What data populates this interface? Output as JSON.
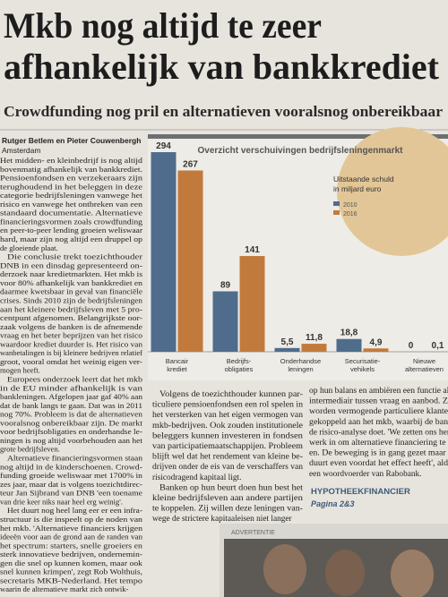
{
  "article": {
    "headline": [
      "Mkb nog altijd te zeer",
      "afhankelijk van bankkrediet"
    ],
    "subheadline": "Crowdfunding nog pril en alternatieven vooralsnog onbereikbaar",
    "byline": [
      "Rutger Betlem en Pieter Couwenbergh",
      "Amsterdam"
    ],
    "columns": [
      {
        "paragraphs": [
          [
            "Het midden- en kleinbedrijf is nog altijd",
            "bovenmatig afhankelijk van bankkrediet.",
            "Pensioenfondsen en verzekeraars zijn",
            "terughoudend in het beleggen in deze",
            "categorie bedrijfsleningen vanwege het",
            "risico en vanwege het ontbreken van een",
            "standaard documentatie. Alternatieve",
            "financieringsvormen zoals crowdfunding",
            "en peer-to-peer lending groeien weliswaar",
            "hard, maar zijn nog altijd een druppel op",
            "de gloeiende plaat."
          ],
          [
            "Die conclusie trekt toezichthouder",
            "DNB in een dinsdag gepresenteerd on-",
            "derzoek naar kredietmarkten. Het mkb is",
            "voor 80% afhankelijk van bankkrediet en",
            "daarmee kwetsbaar in geval van financiële",
            "crises. Sinds 2010 zijn de bedrijfsleningen",
            "aan het kleinere bedrijfsleven met 5 pro-",
            "centpunt afgenomen. Belangrijkste oor-",
            "zaak volgens de banken is de afnemende",
            "vraag en het beter beprijzen van het risico",
            "waardoor krediet duurder is. Het risico van",
            "wanbetalingen is bij kleinere bedrijven relatief",
            "groot, vooral omdat het weinig eigen ver-",
            "mogen heeft."
          ],
          [
            "Europees onderzoek leert dat het mkb",
            "in de EU minder afhankelijk is van",
            "bankleningen. Afgelopen jaar gaf 40% aan",
            "dat de bank langs te gaan. Dat was in 2011",
            "nog 70%. Probleem is dat de alternatieven",
            "vooralsnog onbereikbaar zijn. De markt",
            "voor bedrijfsobligaties en onderhandse le-",
            "ningen is nog altijd voorbehouden aan het",
            "grote bedrijfsleven."
          ],
          [
            "Alternatieve financieringsvormen staan",
            "nog altijd in de kinderschoenen. Crowd-",
            "funding groeide weliswaar met 1700% in",
            "zes jaar, maar dat is volgens toezichtdirec-",
            "teur Jan Sijbrand van DNB 'een toename",
            "van drie keer niks naar heel erg weinig'."
          ],
          [
            "Het duurt nog heel lang eer er een infra-",
            "structuur is die inspeelt op de noden van",
            "het mkb. 'Alternatieve financiers krijgen",
            "ideeën voor aan de grond aan de randen van",
            "het spectrum: starters, snelle groeiers en",
            "sterk innovatieve bedrijven, ondernemin-",
            "gen die snel op kunnen komen, maar ook",
            "snel kunnen krimpen', zegt Rob Wolthuis,",
            "secretaris MKB-Nederland. Het tempo",
            "waarin de alternatieve markt zich ontwik-"
          ]
        ]
      },
      {
        "paragraphs": [
          [
            "Volgens de toezichthouder kunnen par-",
            "ticuliere pensioenfondsen een rol spelen in",
            "het versterken van het eigen vermogen van",
            "mkb-bedrijven. Ook zouden institutionele",
            "beleggers kunnen investeren in fondsen",
            "van participatiemaatschappijen. Probleem",
            "blijft wel dat het rendement van kleine be-",
            "drijven onder de eis van de verschaffers van",
            "risicodragend kapitaal ligt."
          ],
          [
            "Banken op hun beurt doen hun best het",
            "kleine bedrijfsleven aan andere partijen",
            "te koppelen. Zij willen deze leningen van-",
            "wege de strictere kapitaaleisen niet langer"
          ]
        ]
      },
      {
        "paragraphs": [
          [
            "op hun balans en ambiëren een functie als",
            "intermediair tussen vraag en aanbod. Zo",
            "worden vermogende particuliere klanten",
            "gekoppeld aan het mkb, waarbij de bank",
            "de risico-analyse doet. 'We zetten ons her-",
            "werk in om alternatieve financiering te v",
            "en. De beweging is in gang gezet maar h",
            "duurt even voordat het effect heeft', aldu",
            "een woordvoerder van Rabobank."
          ]
        ]
      }
    ]
  },
  "sidebar": {
    "title": "HYPOTHEEKFINANCIER",
    "subtitle": "Pagina 2&3"
  },
  "advertisement": {
    "label": "ADVERTENTIE"
  },
  "chart_data": {
    "type": "bar",
    "title": "Overzicht verschuivingen bedrijfsleningenmarkt",
    "legend_title": [
      "Uitstaande schuld",
      "in miljard euro"
    ],
    "categories": [
      [
        "Bancair",
        "krediet"
      ],
      [
        "Bedrijfs-",
        "obligaties"
      ],
      [
        "Onderhandse",
        "leningen"
      ],
      [
        "Securisatie-",
        "vehikels"
      ],
      [
        "Nieuwe",
        "alternatieven"
      ]
    ],
    "series": [
      {
        "name": "2010",
        "color": "#4f6c8c",
        "values": [
          294,
          89,
          5.5,
          18.8,
          0
        ],
        "value_labels": [
          "294",
          "89",
          "5,5",
          "18,8",
          "0"
        ]
      },
      {
        "name": "2016",
        "color": "#c27a3c",
        "values": [
          267,
          141,
          11.8,
          4.9,
          0.1
        ],
        "value_labels": [
          "267",
          "141",
          "11,8",
          "4,9",
          "0,1"
        ]
      }
    ]
  }
}
